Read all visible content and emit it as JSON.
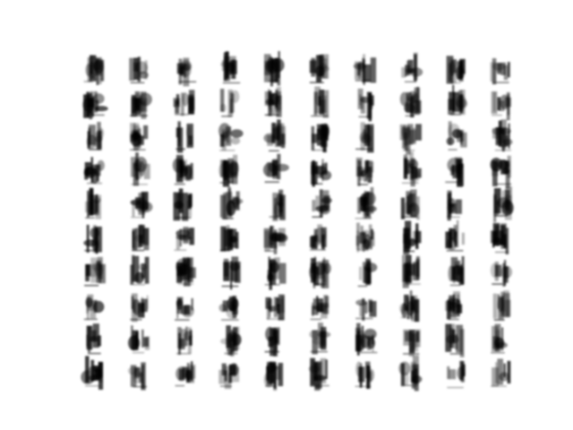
{
  "figure": {
    "background": "#ffffff",
    "ink": "#000000",
    "grid": {
      "rows": 10,
      "cols": 10
    },
    "description_kind": "grid of blurry grayscale generated sample images"
  }
}
